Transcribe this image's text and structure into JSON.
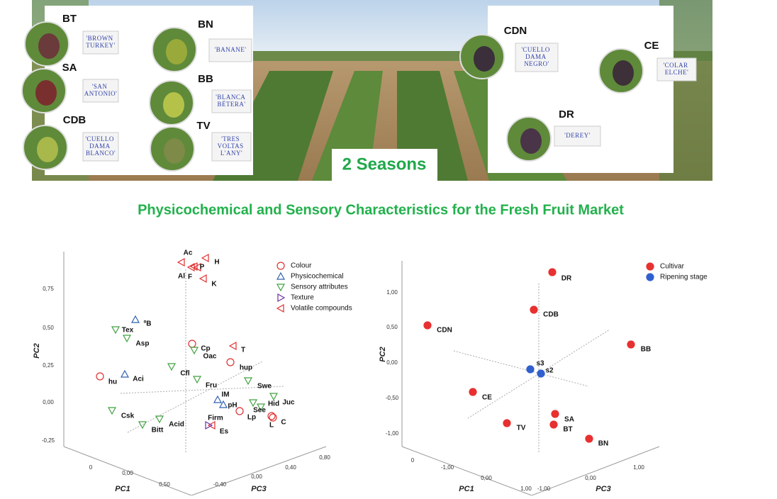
{
  "seasons": "2 Seasons",
  "title": "Physicochemical and Sensory Characteristics for the Fresh Fruit Market",
  "cultivars": [
    {
      "code": "BT",
      "name": "'BROWN TURKEY'"
    },
    {
      "code": "BN",
      "name": "'BANANE'"
    },
    {
      "code": "SA",
      "name": "'SAN ANTONIO'"
    },
    {
      "code": "BB",
      "name": "'BLANCA BÉTERA'"
    },
    {
      "code": "CDB",
      "name": "'CUELLO DAMA BLANCO'"
    },
    {
      "code": "TV",
      "name": "'TRES VOLTAS L'ANY'"
    },
    {
      "code": "CDN",
      "name": "'CUELLO DAMA NEGRO'"
    },
    {
      "code": "CE",
      "name": "'COLAR ELCHE'"
    },
    {
      "code": "DR",
      "name": "'DEREY'"
    }
  ],
  "plots": [
    {
      "axes": {
        "y": "PC2",
        "x": "PC1",
        "z": "PC3"
      },
      "yticks": [
        "0,75",
        "0,50",
        "0,25",
        "0,00",
        "-0,25"
      ],
      "xticks": [
        "0",
        "0,00",
        "0,50"
      ],
      "zticks": [
        "-0,40",
        "0,00",
        "0,40",
        "0,80"
      ],
      "legend": [
        "Colour",
        "Physicochemical",
        "Sensory attributes",
        "Texture",
        "Volatile compounds"
      ],
      "points": [
        {
          "label": "Ac",
          "group": 4
        },
        {
          "label": "H",
          "group": 4
        },
        {
          "label": "P",
          "group": 4
        },
        {
          "label": "Al",
          "group": 4
        },
        {
          "label": "F",
          "group": 4
        },
        {
          "label": "K",
          "group": 4
        },
        {
          "label": "T",
          "group": 4
        },
        {
          "label": "Firm",
          "group": 4
        },
        {
          "label": "Cp",
          "group": 0
        },
        {
          "label": "hup",
          "group": 0
        },
        {
          "label": "hu",
          "group": 0
        },
        {
          "label": "Lp",
          "group": 0
        },
        {
          "label": "L",
          "group": 0
        },
        {
          "label": "C",
          "group": 0
        },
        {
          "label": "ºB",
          "group": 1
        },
        {
          "label": "Aci",
          "group": 1
        },
        {
          "label": "IM",
          "group": 1
        },
        {
          "label": "pH",
          "group": 1
        },
        {
          "label": "Tex",
          "group": 2
        },
        {
          "label": "Asp",
          "group": 2
        },
        {
          "label": "Cfl",
          "group": 2
        },
        {
          "label": "Oac",
          "group": 2
        },
        {
          "label": "Fru",
          "group": 2
        },
        {
          "label": "Swe",
          "group": 2
        },
        {
          "label": "Juc",
          "group": 2
        },
        {
          "label": "Hid",
          "group": 2
        },
        {
          "label": "See",
          "group": 2
        },
        {
          "label": "Csk",
          "group": 2
        },
        {
          "label": "Bitt",
          "group": 2
        },
        {
          "label": "Acid",
          "group": 2
        },
        {
          "label": "Es",
          "group": 3
        }
      ]
    },
    {
      "axes": {
        "y": "PC2",
        "x": "PC1",
        "z": "PC3"
      },
      "yticks": [
        "1,00",
        "0,50",
        "0,00",
        "-0,50",
        "-1,00"
      ],
      "xticks": [
        "0",
        "-1,00",
        "0,00",
        "1,00"
      ],
      "zticks": [
        "-1,00",
        "0,00",
        "1,00"
      ],
      "legend": [
        "Cultivar",
        "Ripening stage"
      ],
      "points": [
        {
          "label": "DR",
          "group": 0
        },
        {
          "label": "CDB",
          "group": 0
        },
        {
          "label": "CDN",
          "group": 0
        },
        {
          "label": "BB",
          "group": 0
        },
        {
          "label": "CE",
          "group": 0
        },
        {
          "label": "SA",
          "group": 0
        },
        {
          "label": "BT",
          "group": 0
        },
        {
          "label": "TV",
          "group": 0
        },
        {
          "label": "BN",
          "group": 0
        },
        {
          "label": "s3",
          "group": 1
        },
        {
          "label": "s2",
          "group": 1
        }
      ]
    }
  ]
}
